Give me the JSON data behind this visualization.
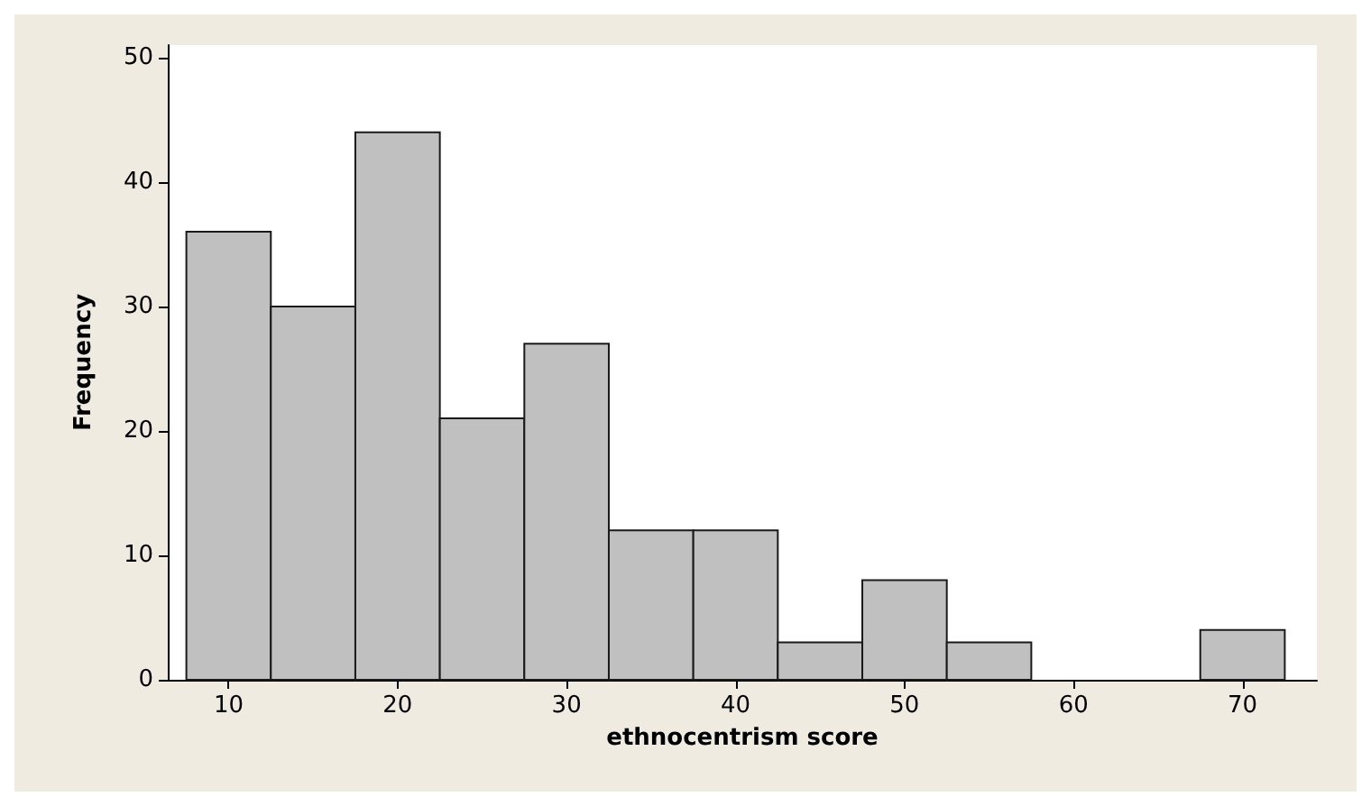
{
  "chart_data": {
    "type": "histogram",
    "xlabel": "ethnocentrism score",
    "ylabel": "Frequency",
    "bins": [
      7.5,
      12.5,
      17.5,
      22.5,
      27.5,
      32.5,
      37.5,
      42.5,
      47.5,
      52.5,
      57.5,
      62.5,
      67.5,
      72.5
    ],
    "values": [
      36,
      30,
      44,
      21,
      27,
      12,
      12,
      3,
      8,
      3,
      0,
      0,
      4
    ],
    "color": "#c0c0c0",
    "xlim": [
      6.4,
      74.4
    ],
    "xticks": [
      10,
      20,
      30,
      40,
      50,
      60,
      70
    ],
    "ylim": [
      0,
      51
    ],
    "yticks": [
      0,
      10,
      20,
      30,
      40,
      50
    ],
    "grid": false
  }
}
